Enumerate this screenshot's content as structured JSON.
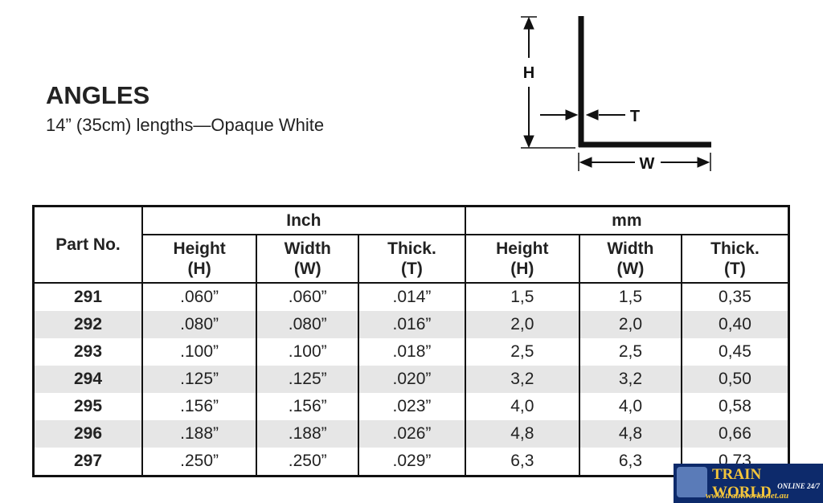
{
  "header": {
    "title": "ANGLES",
    "subtitle": "14” (35cm) lengths—Opaque White"
  },
  "diagram": {
    "height_label": "H",
    "thickness_label": "T",
    "width_label": "W"
  },
  "table": {
    "part_header": "Part No.",
    "groups": [
      "Inch",
      "mm"
    ],
    "columns": [
      [
        "Height",
        "(H)"
      ],
      [
        "Width",
        "(W)"
      ],
      [
        "Thick.",
        "(T)"
      ],
      [
        "Height",
        "(H)"
      ],
      [
        "Width",
        "(W)"
      ],
      [
        "Thick.",
        "(T)"
      ]
    ],
    "rows": [
      [
        "291",
        ".060”",
        ".060”",
        ".014”",
        "1,5",
        "1,5",
        "0,35"
      ],
      [
        "292",
        ".080”",
        ".080”",
        ".016”",
        "2,0",
        "2,0",
        "0,40"
      ],
      [
        "293",
        ".100”",
        ".100”",
        ".018”",
        "2,5",
        "2,5",
        "0,45"
      ],
      [
        "294",
        ".125”",
        ".125”",
        ".020”",
        "3,2",
        "3,2",
        "0,50"
      ],
      [
        "295",
        ".156”",
        ".156”",
        ".023”",
        "4,0",
        "4,0",
        "0,58"
      ],
      [
        "296",
        ".188”",
        ".188”",
        ".026”",
        "4,8",
        "4,8",
        "0,66"
      ],
      [
        "297",
        ".250”",
        ".250”",
        ".029”",
        "6,3",
        "6,3",
        "0,73"
      ]
    ]
  },
  "watermark": {
    "brand": "TRAIN WORLD",
    "tagline": "ONLINE 24/7",
    "url": "www.trainworld.net.au"
  }
}
